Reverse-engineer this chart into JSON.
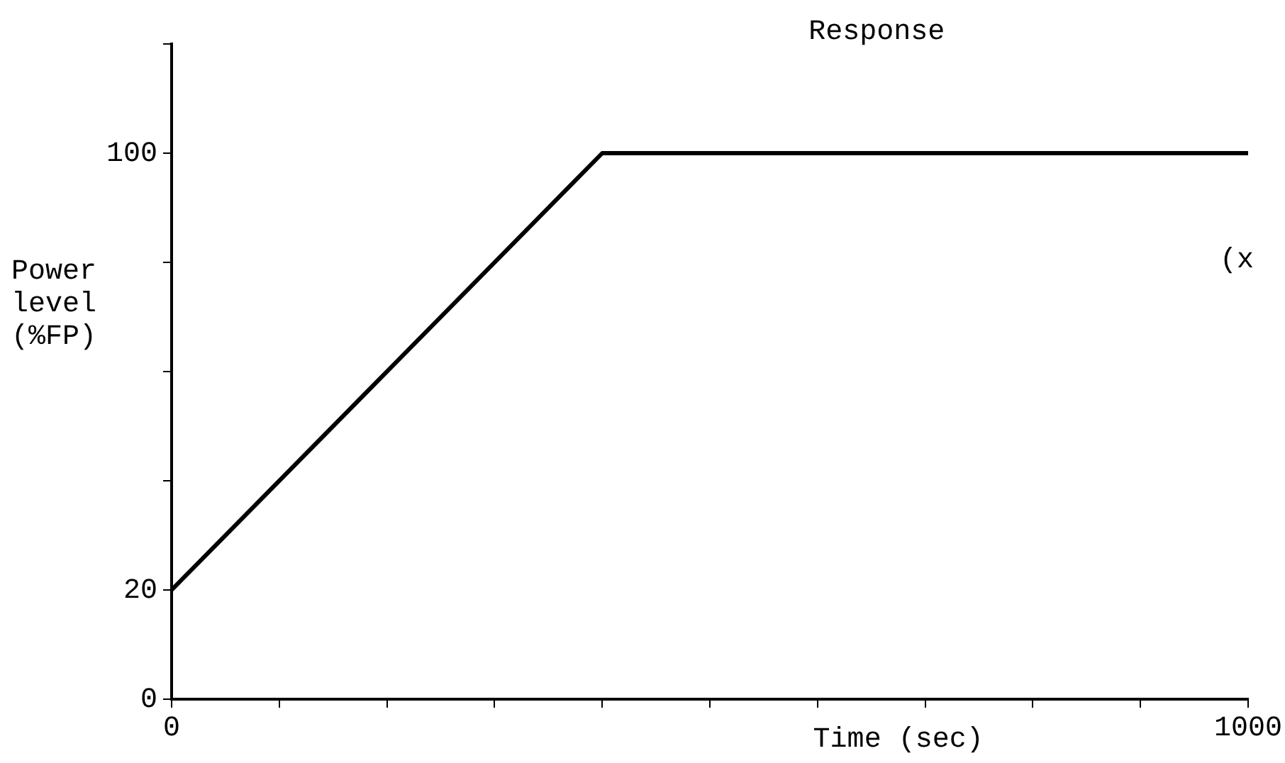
{
  "chart_data": {
    "type": "line",
    "title": "Response",
    "xlabel": "Time (sec)",
    "ylabel": "Power level (%FP)",
    "x": [
      0,
      400,
      1000
    ],
    "series": [
      {
        "color": "#000000",
        "values": [
          20,
          100,
          100
        ]
      }
    ],
    "xlim": [
      0,
      1000
    ],
    "xticks": [
      0,
      {
        "value": 100,
        "label": null
      },
      {
        "value": 200,
        "label": null
      },
      {
        "value": 300,
        "label": null
      },
      {
        "value": 400,
        "label": null
      },
      {
        "value": 500,
        "label": null
      },
      {
        "value": 600,
        "label": null
      },
      {
        "value": 700,
        "label": null
      },
      {
        "value": 800,
        "label": null
      },
      {
        "value": 900,
        "label": null
      },
      1000
    ],
    "ylim": [
      0,
      120
    ],
    "yticks": [
      0,
      20,
      {
        "value": 40,
        "label": null
      },
      {
        "value": 60,
        "label": null
      },
      {
        "value": 80,
        "label": null
      },
      100,
      {
        "value": 120,
        "label": null
      }
    ],
    "annotations": [
      "(x"
    ],
    "grid": false,
    "legend": false,
    "marker": "none",
    "line_style": "solid"
  }
}
